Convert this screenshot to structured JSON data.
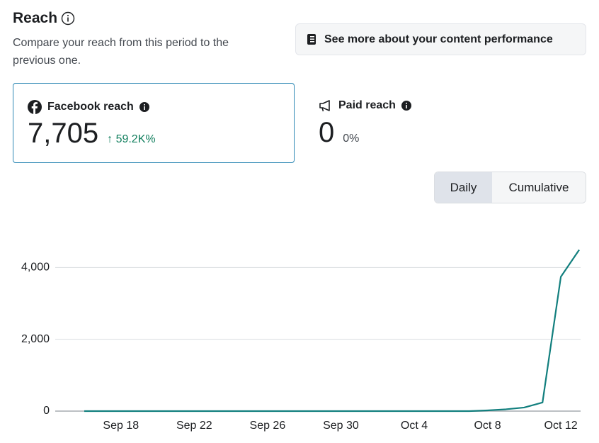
{
  "header": {
    "title": "Reach",
    "subtitle": "Compare your reach from this period to the previous one.",
    "button": "See more about your content performance"
  },
  "cards": [
    {
      "label": "Facebook reach",
      "value": "7,705",
      "change": "59.2K%"
    },
    {
      "label": "Paid reach",
      "value": "0",
      "change": "0%"
    }
  ],
  "toggle": [
    "Daily",
    "Cumulative"
  ],
  "chart_data": {
    "type": "line",
    "categories": [
      null,
      null,
      "Sep 18",
      null,
      null,
      null,
      "Sep 22",
      null,
      null,
      null,
      "Sep 26",
      null,
      null,
      null,
      "Sep 30",
      null,
      null,
      null,
      "Oct 4",
      null,
      null,
      null,
      "Oct 8",
      null,
      null,
      null,
      "Oct 12",
      null
    ],
    "series": [
      {
        "name": "Facebook reach",
        "color": "#127f7e",
        "values": [
          0,
          0,
          0,
          0,
          0,
          0,
          0,
          0,
          0,
          0,
          0,
          0,
          0,
          0,
          0,
          0,
          0,
          0,
          0,
          0,
          0,
          0,
          20,
          50,
          100,
          240,
          3740,
          4490
        ]
      }
    ],
    "ylim": [
      0,
      4500
    ],
    "yticks": [
      0,
      {
        "value": 2000,
        "label": "2,000"
      },
      {
        "value": 4000,
        "label": "4,000"
      }
    ],
    "grid": true
  }
}
